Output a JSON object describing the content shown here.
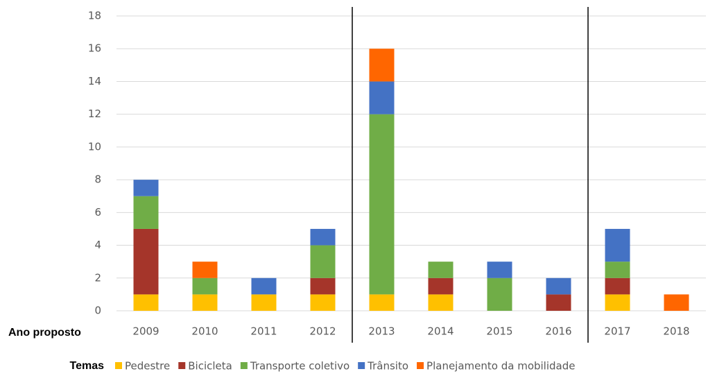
{
  "chart_data": {
    "type": "stacked_bar",
    "x_label": "Ano proposto",
    "legend_title": "Temas",
    "categories": [
      "2009",
      "2010",
      "2011",
      "2012",
      "2013",
      "2014",
      "2015",
      "2016",
      "2017",
      "2018"
    ],
    "series": [
      {
        "name": "Pedestre",
        "color": "#ffc000",
        "values": [
          1,
          1,
          1,
          1,
          1,
          1,
          0,
          0,
          1,
          0
        ]
      },
      {
        "name": "Bicicleta",
        "color": "#a5352a",
        "values": [
          4,
          0,
          0,
          1,
          0,
          1,
          0,
          1,
          1,
          0
        ]
      },
      {
        "name": "Transporte coletivo",
        "color": "#70ad47",
        "values": [
          2,
          1,
          0,
          2,
          11,
          1,
          2,
          0,
          1,
          0
        ]
      },
      {
        "name": "Trânsito",
        "color": "#4472c4",
        "values": [
          1,
          0,
          1,
          1,
          2,
          0,
          1,
          1,
          2,
          0
        ]
      },
      {
        "name": "Planejamento da mobilidade",
        "color": "#ff6600",
        "values": [
          0,
          1,
          0,
          0,
          2,
          0,
          0,
          0,
          0,
          1
        ]
      }
    ],
    "ylim": [
      0,
      18
    ],
    "yticks": [
      0,
      2,
      4,
      6,
      8,
      10,
      12,
      14,
      16,
      18
    ],
    "grid": true
  }
}
